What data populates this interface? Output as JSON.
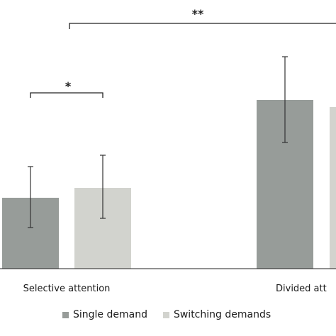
{
  "chart_data": {
    "type": "bar",
    "categories": [
      "Selective attention",
      "Divided attention"
    ],
    "category_labels_visible": [
      "Selective attention",
      "Divided att"
    ],
    "series": [
      {
        "name": "Single demand",
        "color": "#979c99",
        "values": [
          100,
          238
        ],
        "error_low": [
          58,
          178
        ],
        "error_high": [
          144,
          299
        ]
      },
      {
        "name": "Switching demands",
        "color": "#d2d3ce",
        "values": [
          114,
          228
        ],
        "error_low": [
          71,
          null
        ],
        "error_high": [
          160,
          null
        ]
      }
    ],
    "ylim": [
      0,
      360
    ],
    "significance": [
      {
        "label": "*",
        "from": "Selective attention: Single demand",
        "to": "Selective attention: Switching demands"
      },
      {
        "label": "**",
        "from": "Selective attention: Single demand",
        "to": "Divided attention"
      }
    ],
    "legend_position": "bottom",
    "grid": false
  }
}
